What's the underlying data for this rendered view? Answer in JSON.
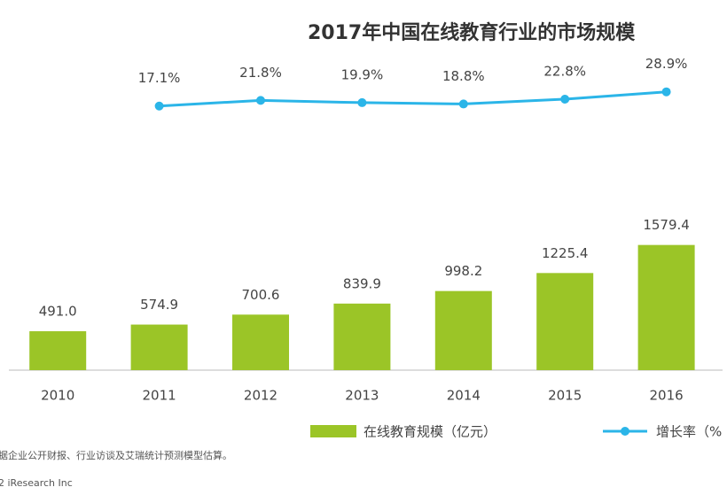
{
  "chart_data": {
    "type": "bar",
    "title": "2017年中国在线教育行业的市场规模",
    "categories": [
      "2010",
      "2011",
      "2012",
      "2013",
      "2014",
      "2015",
      "2016"
    ],
    "series": [
      {
        "name": "在线教育规模（亿元）",
        "type": "bar",
        "color": "#9bc527",
        "values": [
          491.0,
          574.9,
          700.6,
          839.9,
          998.2,
          1225.4,
          1579.4
        ],
        "value_labels": [
          "491.0",
          "574.9",
          "700.6",
          "839.9",
          "998.2",
          "1225.4",
          "1579.4"
        ]
      },
      {
        "name": "增长率（%",
        "type": "line",
        "axis": "y2",
        "color": "#2bb5e8",
        "values": [
          null,
          17.1,
          21.8,
          19.9,
          18.8,
          22.8,
          28.9
        ],
        "value_labels": [
          null,
          "17.1%",
          "21.8%",
          "19.9%",
          "18.8%",
          "22.8%",
          "28.9%"
        ]
      }
    ],
    "ylim": [
      0,
      2000
    ],
    "y2lim": [
      0,
      100
    ],
    "source": "据企业公开财报、行业访谈及艾瑞统计预测模型估算。",
    "copyright": "2 iResearch Inc"
  }
}
